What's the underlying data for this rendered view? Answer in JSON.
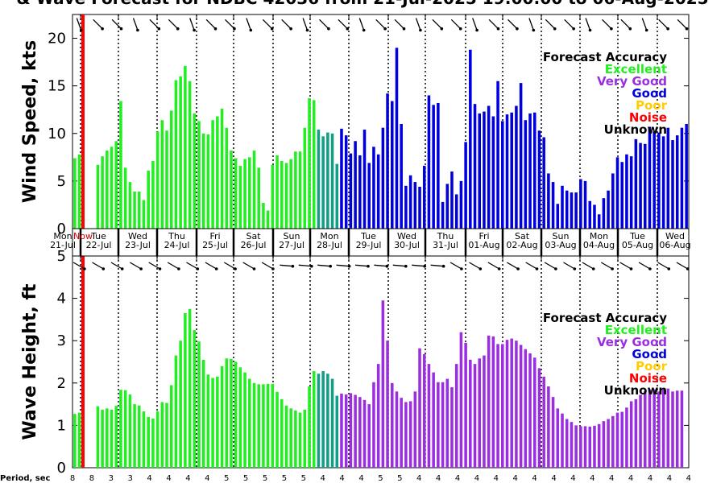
{
  "title": "& Wave Forecast for NDBC 42036 from 21-Jul-2025 19:00:00 to 06-Aug-2025",
  "now_label": "Now",
  "period_label": "Period, sec",
  "legend": {
    "title": "Forecast Accuracy",
    "items": [
      {
        "label": "Excellent",
        "color": "#22ee22"
      },
      {
        "label": "Very Good",
        "color": "#9b2fe0"
      },
      {
        "label": "Good",
        "color": "#0000dd"
      },
      {
        "label": "Poor",
        "color": "#ffcc00"
      },
      {
        "label": "Noise",
        "color": "#ff0000"
      },
      {
        "label": "Unknown",
        "color": "#000000"
      }
    ]
  },
  "days": [
    {
      "dow": "Mon",
      "date": "21-Jul"
    },
    {
      "dow": "Tue",
      "date": "22-Jul"
    },
    {
      "dow": "Wed",
      "date": "23-Jul"
    },
    {
      "dow": "Thu",
      "date": "24-Jul"
    },
    {
      "dow": "Fri",
      "date": "25-Jul"
    },
    {
      "dow": "Sat",
      "date": "26-Jul"
    },
    {
      "dow": "Sun",
      "date": "27-Jul"
    },
    {
      "dow": "Mon",
      "date": "28-Jul"
    },
    {
      "dow": "Tue",
      "date": "29-Jul"
    },
    {
      "dow": "Wed",
      "date": "30-Jul"
    },
    {
      "dow": "Thu",
      "date": "31-Jul"
    },
    {
      "dow": "Fri",
      "date": "01-Aug"
    },
    {
      "dow": "Sat",
      "date": "02-Aug"
    },
    {
      "dow": "Sun",
      "date": "03-Aug"
    },
    {
      "dow": "Mon",
      "date": "04-Aug"
    },
    {
      "dow": "Tue",
      "date": "05-Aug"
    },
    {
      "dow": "Wed",
      "date": "06-Aug"
    }
  ],
  "periods": [
    "8",
    "8",
    "3",
    "3",
    "4",
    "4",
    "4",
    "4",
    "5",
    "5",
    "5",
    "5",
    "5",
    "4",
    "4",
    "4",
    "5",
    "5",
    "4",
    "4",
    "4",
    "4",
    "4",
    "4",
    "4",
    "4",
    "4",
    "4",
    "4",
    "4",
    "4",
    "4",
    "4"
  ],
  "chart_data": [
    {
      "type": "bar",
      "ylabel": "Wind Speed, kts",
      "ylim": [
        0,
        22.5
      ],
      "yticks": [
        0,
        5,
        10,
        15,
        20
      ],
      "series": [
        {
          "values": [
            7.4,
            7.8,
            null,
            null,
            null,
            6.7,
            7.6,
            8.2,
            8.6,
            9.2,
            13.4,
            6.4,
            4.9,
            3.9,
            3.9,
            3.0,
            6.1,
            7.1,
            10.2,
            11.4,
            10.3,
            12.4,
            15.6,
            16.0,
            17.1,
            15.5,
            12.1,
            11.3,
            10.0,
            9.9,
            11.4,
            11.8,
            12.6,
            10.6,
            8.2,
            7.4,
            6.6,
            7.3,
            7.5,
            8.2,
            6.4,
            2.7,
            1.9,
            6.7,
            7.7,
            7.1,
            6.9,
            7.3,
            8.1,
            8.1,
            10.6,
            13.7,
            13.5,
            10.4,
            9.7,
            10.1,
            10.0,
            6.8,
            10.5,
            9.8,
            7.9,
            9.2,
            7.7,
            10.4,
            6.9,
            8.6,
            7.8,
            10.6,
            14.2,
            13.4,
            19.0,
            11.0,
            4.5,
            5.6,
            4.9,
            4.4,
            6.6,
            14.0,
            13.0,
            13.2,
            2.8,
            4.7,
            6.0,
            3.6,
            5.0,
            9.1,
            18.8,
            13.1,
            12.1,
            12.3,
            12.9,
            11.8,
            15.5,
            11.3,
            12.0,
            12.2,
            12.9,
            15.3,
            11.4,
            12.1,
            12.2,
            10.3,
            9.6,
            5.8,
            4.9,
            2.6,
            4.5,
            4.0,
            3.8,
            3.8,
            5.2,
            5.0,
            2.9,
            2.5,
            1.5,
            3.2,
            4.0,
            5.8,
            7.5,
            7.0,
            7.8,
            7.6,
            9.4,
            9.0,
            8.9,
            10.7,
            10.2,
            10.1,
            9.7,
            10.6,
            9.3,
            9.8,
            10.6,
            11.0
          ],
          "quality": [
            "E",
            "E",
            null,
            null,
            null,
            "E",
            "E",
            "E",
            "E",
            "E",
            "E",
            "E",
            "E",
            "E",
            "E",
            "E",
            "E",
            "E",
            "E",
            "E",
            "E",
            "E",
            "E",
            "E",
            "E",
            "E",
            "E",
            "E",
            "E",
            "E",
            "E",
            "E",
            "E",
            "E",
            "E",
            "E",
            "E",
            "E",
            "E",
            "E",
            "E",
            "E",
            "E",
            "E",
            "E",
            "E",
            "E",
            "E",
            "E",
            "E",
            "E",
            "E",
            "E",
            "T",
            "T",
            "T",
            "T",
            "T",
            "G",
            "G",
            "G",
            "G",
            "G",
            "G",
            "G",
            "G",
            "G",
            "G",
            "G",
            "G",
            "G",
            "G",
            "G",
            "G",
            "G",
            "G",
            "G",
            "G",
            "G",
            "G",
            "G",
            "G",
            "G",
            "G",
            "G",
            "G",
            "G",
            "G",
            "G",
            "G",
            "G",
            "G",
            "G",
            "G",
            "G",
            "G",
            "G",
            "G",
            "G",
            "G",
            "G",
            "G",
            "G",
            "G",
            "G",
            "G",
            "G",
            "G",
            "G",
            "G",
            "G",
            "G",
            "G",
            "G",
            "G",
            "G",
            "G",
            "G",
            "G",
            "G",
            "G",
            "G",
            "G",
            "G",
            "G",
            "G",
            "G",
            "G",
            "G",
            "G",
            "G",
            "G",
            "G",
            "G",
            "G",
            "G",
            "G"
          ]
        }
      ]
    },
    {
      "type": "bar",
      "ylabel": "Wave Height, ft",
      "ylim": [
        0,
        5
      ],
      "yticks": [
        0,
        1,
        2,
        3,
        4,
        5
      ],
      "series": [
        {
          "values": [
            1.27,
            1.3,
            null,
            null,
            null,
            1.45,
            1.37,
            1.4,
            1.37,
            1.46,
            1.84,
            1.83,
            1.73,
            1.5,
            1.47,
            1.33,
            1.2,
            1.16,
            1.33,
            1.55,
            1.53,
            1.95,
            2.65,
            3.0,
            3.65,
            3.75,
            3.25,
            2.98,
            2.55,
            2.2,
            2.12,
            2.15,
            2.4,
            2.58,
            2.57,
            2.5,
            2.37,
            2.25,
            2.1,
            2.0,
            1.97,
            1.97,
            1.98,
            1.98,
            1.79,
            1.62,
            1.47,
            1.4,
            1.35,
            1.3,
            1.37,
            1.92,
            2.28,
            2.22,
            2.28,
            2.22,
            2.1,
            1.7,
            1.75,
            1.73,
            1.76,
            1.72,
            1.67,
            1.6,
            1.5,
            2.02,
            2.45,
            3.95,
            3.0,
            2.0,
            1.8,
            1.65,
            1.55,
            1.57,
            1.8,
            2.82,
            2.68,
            2.45,
            2.25,
            2.02,
            2.02,
            2.1,
            1.9,
            2.45,
            3.2,
            2.95,
            2.55,
            2.45,
            2.58,
            2.65,
            3.12,
            3.1,
            2.92,
            2.92,
            3.02,
            3.05,
            3.0,
            2.9,
            2.8,
            2.7,
            2.6,
            2.35,
            2.15,
            1.92,
            1.67,
            1.4,
            1.28,
            1.15,
            1.08,
            1.0,
            0.98,
            0.98,
            0.97,
            0.99,
            1.03,
            1.1,
            1.15,
            1.22,
            1.3,
            1.32,
            1.42,
            1.57,
            1.62,
            1.72,
            1.8,
            1.85,
            1.85,
            1.8,
            1.85,
            1.87,
            1.8,
            1.82,
            1.82
          ],
          "quality": [
            "E",
            "E",
            null,
            null,
            null,
            "E",
            "E",
            "E",
            "E",
            "E",
            "E",
            "E",
            "E",
            "E",
            "E",
            "E",
            "E",
            "E",
            "E",
            "E",
            "E",
            "E",
            "E",
            "E",
            "E",
            "E",
            "E",
            "E",
            "E",
            "E",
            "E",
            "E",
            "E",
            "E",
            "E",
            "E",
            "E",
            "E",
            "E",
            "E",
            "E",
            "E",
            "E",
            "E",
            "E",
            "E",
            "E",
            "E",
            "E",
            "E",
            "E",
            "E",
            "E",
            "T",
            "T",
            "T",
            "T",
            "T",
            "V",
            "V",
            "V",
            "V",
            "V",
            "V",
            "V",
            "V",
            "V",
            "V",
            "V",
            "V",
            "V",
            "V",
            "V",
            "V",
            "V",
            "V",
            "V",
            "V",
            "V",
            "V",
            "V",
            "V",
            "V",
            "V",
            "V",
            "V",
            "V",
            "V",
            "V",
            "V",
            "V",
            "V",
            "V",
            "V",
            "V",
            "V",
            "V",
            "V",
            "V",
            "V",
            "V",
            "V",
            "V",
            "V",
            "V",
            "V",
            "V",
            "V",
            "V",
            "V",
            "V",
            "V",
            "V",
            "V",
            "V",
            "V",
            "V",
            "V",
            "V",
            "V",
            "V",
            "V",
            "V",
            "V",
            "V",
            "V",
            "V",
            "V",
            "V",
            "V",
            "V",
            "V",
            "V",
            "V",
            "V"
          ]
        }
      ]
    }
  ]
}
